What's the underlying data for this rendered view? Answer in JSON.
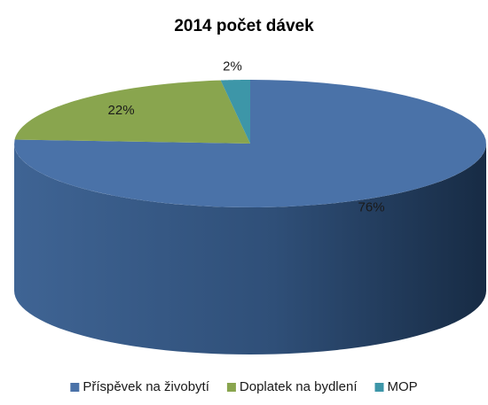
{
  "chart_data": {
    "type": "pie3d",
    "title": "2014 počet dávek",
    "categories": [
      "Příspěvek na živobytí",
      "Doplatek na bydlení",
      "MOP"
    ],
    "values": [
      76,
      22,
      2
    ],
    "value_labels": [
      "76%",
      "22%",
      "2%"
    ],
    "colors": [
      "#4a72a8",
      "#89a54e",
      "#3d96a8"
    ],
    "legend": "bottom"
  }
}
